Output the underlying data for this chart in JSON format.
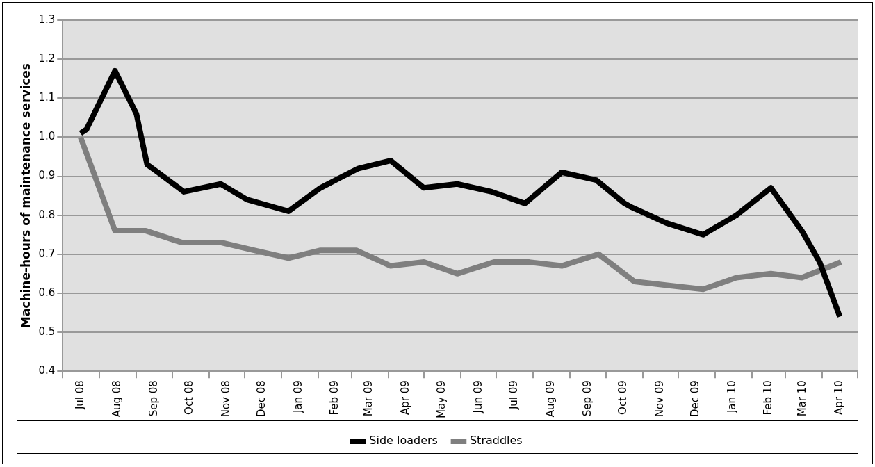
{
  "chart_data": {
    "type": "line",
    "ylabel": "Machine-hours of maintenance services",
    "xlim": [
      "2008-07-01",
      "2010-05-01"
    ],
    "xticks": [
      {
        "value": "2008-07-01",
        "label": null
      },
      {
        "value": "2008-07-16",
        "label": "Jul 08"
      },
      {
        "value": "2008-08-01",
        "label": null
      },
      {
        "value": "2008-08-16",
        "label": "Aug 08"
      },
      {
        "value": "2008-09-01",
        "label": null
      },
      {
        "value": "2008-09-16",
        "label": "Sep 08"
      },
      {
        "value": "2008-10-01",
        "label": null
      },
      {
        "value": "2008-10-16",
        "label": "Oct 08"
      },
      {
        "value": "2008-11-01",
        "label": null
      },
      {
        "value": "2008-11-16",
        "label": "Nov 08"
      },
      {
        "value": "2008-12-01",
        "label": null
      },
      {
        "value": "2008-12-16",
        "label": "Dec 08"
      },
      {
        "value": "2009-01-01",
        "label": null
      },
      {
        "value": "2009-01-16",
        "label": "Jan 09"
      },
      {
        "value": "2009-02-01",
        "label": null
      },
      {
        "value": "2009-02-15",
        "label": "Feb 09"
      },
      {
        "value": "2009-03-01",
        "label": null
      },
      {
        "value": "2009-03-16",
        "label": "Mar 09"
      },
      {
        "value": "2009-04-01",
        "label": null
      },
      {
        "value": "2009-04-16",
        "label": "Apr 09"
      },
      {
        "value": "2009-05-01",
        "label": null
      },
      {
        "value": "2009-05-16",
        "label": "May 09"
      },
      {
        "value": "2009-06-01",
        "label": null
      },
      {
        "value": "2009-06-16",
        "label": "Jun 09"
      },
      {
        "value": "2009-07-01",
        "label": null
      },
      {
        "value": "2009-07-16",
        "label": "Jul 09"
      },
      {
        "value": "2009-08-01",
        "label": null
      },
      {
        "value": "2009-08-16",
        "label": "Aug 09"
      },
      {
        "value": "2009-09-01",
        "label": null
      },
      {
        "value": "2009-09-16",
        "label": "Sep 09"
      },
      {
        "value": "2009-10-01",
        "label": null
      },
      {
        "value": "2009-10-16",
        "label": "Oct 09"
      },
      {
        "value": "2009-11-01",
        "label": null
      },
      {
        "value": "2009-11-16",
        "label": "Nov 09"
      },
      {
        "value": "2009-12-01",
        "label": null
      },
      {
        "value": "2009-12-16",
        "label": "Dec 09"
      },
      {
        "value": "2010-01-01",
        "label": null
      },
      {
        "value": "2010-01-16",
        "label": "Jan 10"
      },
      {
        "value": "2010-02-01",
        "label": null
      },
      {
        "value": "2010-02-15",
        "label": "Feb 10"
      },
      {
        "value": "2010-03-01",
        "label": null
      },
      {
        "value": "2010-03-16",
        "label": "Mar 10"
      },
      {
        "value": "2010-04-01",
        "label": null
      },
      {
        "value": "2010-04-16",
        "label": "Apr 10"
      },
      {
        "value": "2010-05-01",
        "label": null
      }
    ],
    "ylim": [
      0.4,
      1.3
    ],
    "yticks": [
      0.4,
      0.5,
      0.6,
      0.7,
      0.8,
      0.9,
      {
        "value": 1,
        "label": "1.0"
      },
      1.1,
      1.2,
      1.3
    ],
    "grid": "y",
    "legend": "bottom",
    "marker": "none",
    "line_style": "solid",
    "series": [
      {
        "name": "Side loaders",
        "color": "#000000",
        "x": [
          "2008-07-16",
          "2008-07-21",
          "2008-08-14",
          "2008-09-01",
          "2008-09-10",
          "2008-09-19",
          "2008-10-11",
          "2008-11-11",
          "2008-12-03",
          "2009-01-07",
          "2009-02-03",
          "2009-02-22",
          "2009-03-07",
          "2009-04-03",
          "2009-05-01",
          "2009-05-29",
          "2009-06-27",
          "2009-07-25",
          "2009-08-25",
          "2009-09-23",
          "2009-10-17",
          "2009-10-23",
          "2009-11-21",
          "2009-12-22",
          "2010-01-19",
          "2010-02-17",
          "2010-03-15",
          "2010-03-30",
          "2010-04-16"
        ],
        "values": [
          1.01,
          1.02,
          1.17,
          1.06,
          0.93,
          0.91,
          0.86,
          0.88,
          0.84,
          0.81,
          0.87,
          0.9,
          0.92,
          0.94,
          0.87,
          0.88,
          0.86,
          0.83,
          0.91,
          0.89,
          0.83,
          0.82,
          0.78,
          0.75,
          0.8,
          0.87,
          0.76,
          0.68,
          0.54
        ]
      },
      {
        "name": "Straddles",
        "color": "#7f7f7f",
        "x": [
          "2008-07-16",
          "2008-08-14",
          "2008-09-09",
          "2008-10-09",
          "2008-11-11",
          "2008-12-09",
          "2009-01-07",
          "2009-02-03",
          "2009-03-05",
          "2009-04-03",
          "2009-05-01",
          "2009-05-29",
          "2009-06-29",
          "2009-07-28",
          "2009-08-25",
          "2009-09-25",
          "2009-10-25",
          "2009-11-23",
          "2009-12-22",
          "2010-01-19",
          "2010-02-17",
          "2010-03-15",
          "2010-04-17"
        ],
        "values": [
          1.0,
          0.76,
          0.76,
          0.73,
          0.73,
          0.71,
          0.69,
          0.71,
          0.71,
          0.67,
          0.68,
          0.65,
          0.68,
          0.68,
          0.67,
          0.7,
          0.63,
          0.62,
          0.61,
          0.64,
          0.65,
          0.64,
          0.68
        ]
      }
    ]
  }
}
